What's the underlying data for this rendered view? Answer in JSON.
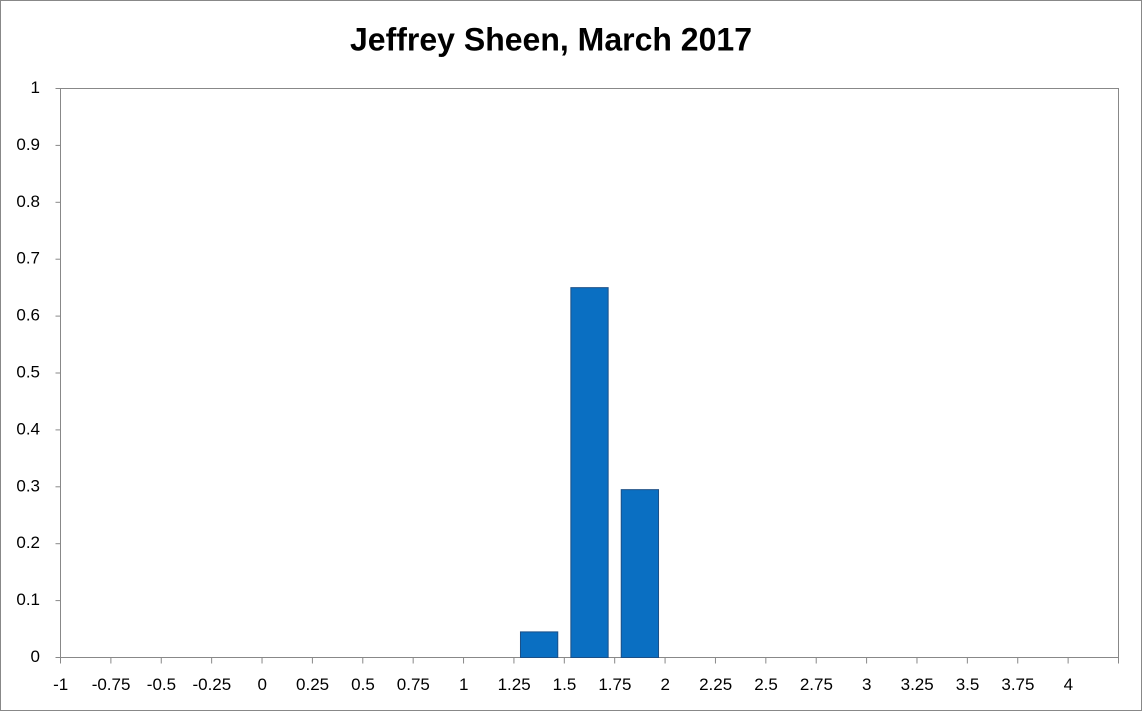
{
  "chart_data": {
    "type": "bar",
    "title": "Jeffrey Sheen, March 2017",
    "categories": [
      "-1",
      "-0.75",
      "-0.5",
      "-0.25",
      "0",
      "0.25",
      "0.5",
      "0.75",
      "1",
      "1.25",
      "1.5",
      "1.75",
      "2",
      "2.25",
      "2.5",
      "2.75",
      "3",
      "3.25",
      "3.5",
      "3.75",
      "4"
    ],
    "values": [
      0,
      0,
      0,
      0,
      0,
      0,
      0,
      0,
      0,
      0.045,
      0.65,
      0.295,
      0,
      0,
      0,
      0,
      0,
      0,
      0,
      0,
      0
    ],
    "color": "#0a6fc2",
    "ylim": [
      0,
      1
    ],
    "yticks": [
      0,
      0.1,
      0.2,
      0.3,
      0.4,
      0.5,
      0.6,
      0.7,
      0.8,
      0.9,
      1
    ],
    "grid": false
  }
}
